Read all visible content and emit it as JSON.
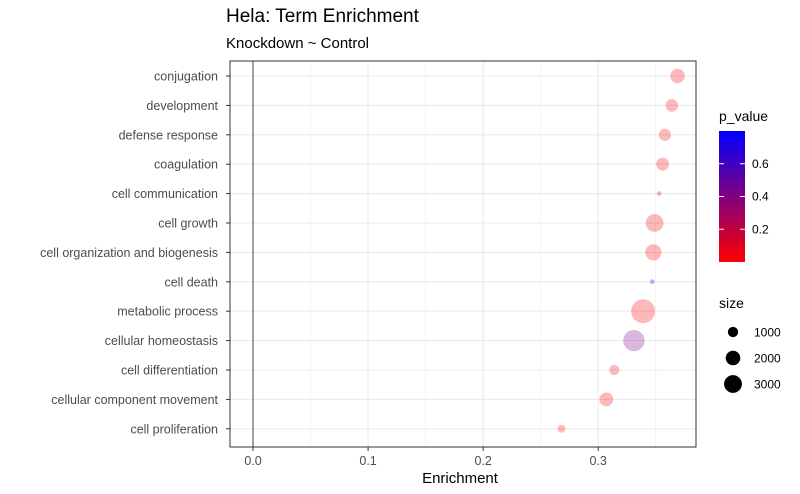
{
  "chart_data": {
    "type": "scatter",
    "title": "Hela: Term Enrichment",
    "subtitle": "Knockdown ~ Control",
    "xlabel": "Enrichment",
    "ylabel": "",
    "xlim": [
      -0.02,
      0.385
    ],
    "x_ticks": [
      {
        "value": 0.0,
        "label": "0.0"
      },
      {
        "value": 0.1,
        "label": "0.1"
      },
      {
        "value": 0.2,
        "label": "0.2"
      },
      {
        "value": 0.3,
        "label": "0.3"
      }
    ],
    "reference_line_x": 0.0,
    "grid": true,
    "categories": [
      "conjugation",
      "development",
      "defense response",
      "coagulation",
      "cell communication",
      "cell growth",
      "cell organization and biogenesis",
      "cell death",
      "metabolic process",
      "cellular homeostasis",
      "cell differentiation",
      "cellular component movement",
      "cell proliferation"
    ],
    "points": [
      {
        "term": "conjugation",
        "enrichment": 0.369,
        "size": 1200,
        "p_value": 0.02
      },
      {
        "term": "development",
        "enrichment": 0.364,
        "size": 900,
        "p_value": 0.02
      },
      {
        "term": "defense response",
        "enrichment": 0.358,
        "size": 850,
        "p_value": 0.02
      },
      {
        "term": "coagulation",
        "enrichment": 0.356,
        "size": 950,
        "p_value": 0.02
      },
      {
        "term": "cell communication",
        "enrichment": 0.353,
        "size": 30,
        "p_value": 0.3
      },
      {
        "term": "cell growth",
        "enrichment": 0.349,
        "size": 1800,
        "p_value": 0.03
      },
      {
        "term": "cell organization and biogenesis",
        "enrichment": 0.348,
        "size": 1500,
        "p_value": 0.02
      },
      {
        "term": "cell death",
        "enrichment": 0.347,
        "size": 100,
        "p_value": 0.75
      },
      {
        "term": "metabolic process",
        "enrichment": 0.339,
        "size": 3300,
        "p_value": 0.01
      },
      {
        "term": "cellular homeostasis",
        "enrichment": 0.331,
        "size": 2600,
        "p_value": 0.42
      },
      {
        "term": "cell differentiation",
        "enrichment": 0.314,
        "size": 600,
        "p_value": 0.02
      },
      {
        "term": "cellular component movement",
        "enrichment": 0.307,
        "size": 1100,
        "p_value": 0.02
      },
      {
        "term": "cell proliferation",
        "enrichment": 0.268,
        "size": 350,
        "p_value": 0.02
      }
    ],
    "point_alpha": 0.28,
    "legend": {
      "position": "right",
      "color": {
        "title": "p_value",
        "range": [
          0.0,
          0.8
        ],
        "ticks": [
          {
            "value": 0.2,
            "label": "0.2"
          },
          {
            "value": 0.4,
            "label": "0.4"
          },
          {
            "value": 0.6,
            "label": "0.6"
          }
        ],
        "low_color": "#ff0000",
        "high_color": "#0000ff"
      },
      "size": {
        "title": "size",
        "entries": [
          {
            "value": 1000,
            "label": "1000"
          },
          {
            "value": 2000,
            "label": "2000"
          },
          {
            "value": 3000,
            "label": "3000"
          }
        ]
      }
    },
    "colors": {
      "grid": "#ebebeb",
      "panel_border": "#333333",
      "tick_text": "#4d4d4d"
    }
  }
}
